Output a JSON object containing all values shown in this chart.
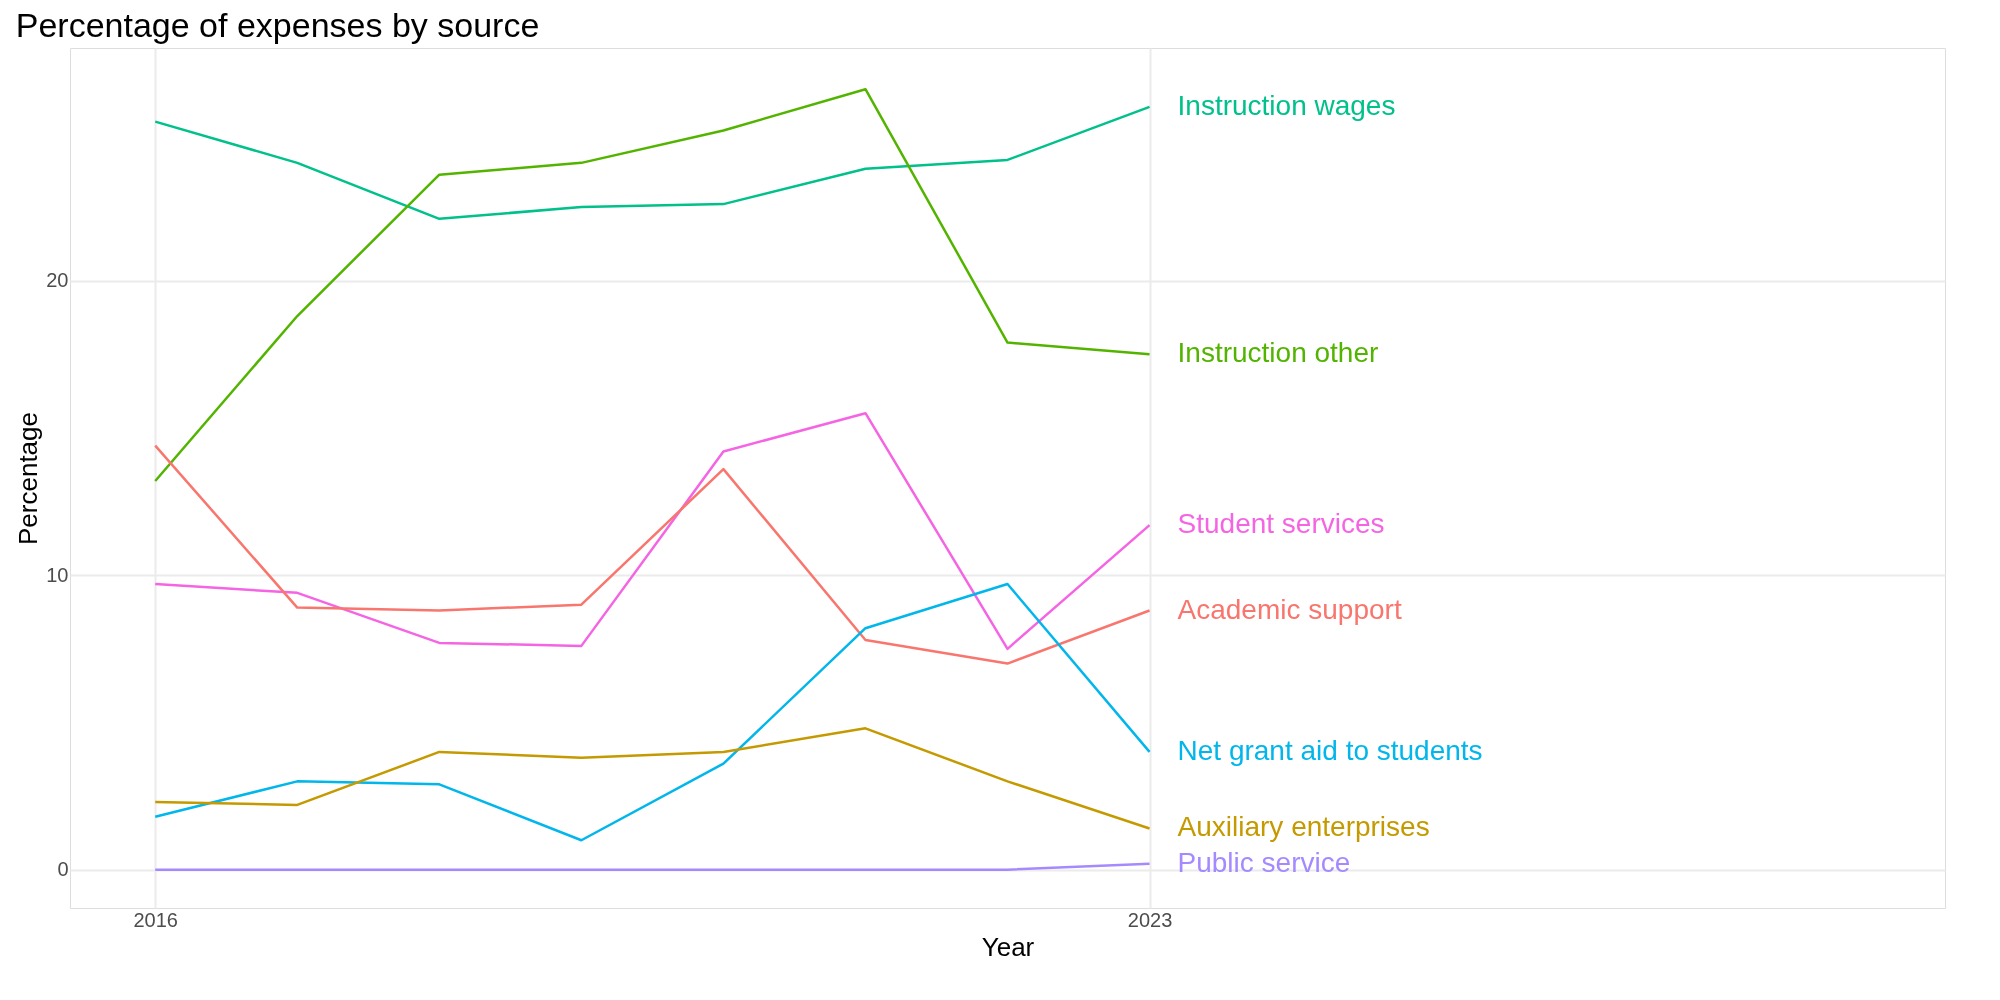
{
  "chart_data": {
    "type": "line",
    "title": "Percentage of expenses by source",
    "xlabel": "Year",
    "ylabel": "Percentage",
    "x": [
      2016,
      2017,
      2018,
      2019,
      2020,
      2021,
      2022,
      2023
    ],
    "xlim": [
      2015.4,
      2028.6
    ],
    "xticks": [
      2016,
      2023
    ],
    "ylim": [
      -1.3,
      27.9
    ],
    "yticks": [
      0,
      10,
      20
    ],
    "grid": true,
    "legend": false,
    "marker": "none",
    "line_style": "solid",
    "series": [
      {
        "name": "Instruction wages",
        "color": "#00c08b",
        "values": [
          25.4,
          24.0,
          22.1,
          22.5,
          22.6,
          23.8,
          24.1,
          25.9
        ]
      },
      {
        "name": "Instruction other",
        "color": "#53b400",
        "values": [
          13.2,
          18.8,
          23.6,
          24.0,
          25.1,
          26.5,
          17.9,
          17.5
        ]
      },
      {
        "name": "Student services",
        "color": "#f564e3",
        "values": [
          9.7,
          9.4,
          7.7,
          7.6,
          14.2,
          15.5,
          7.5,
          11.7
        ]
      },
      {
        "name": "Academic support",
        "color": "#f8766d",
        "values": [
          14.4,
          8.9,
          8.8,
          9.0,
          13.6,
          7.8,
          7.0,
          8.8
        ]
      },
      {
        "name": "Net grant aid to students",
        "color": "#00b6eb",
        "values": [
          1.8,
          3.0,
          2.9,
          1.0,
          3.6,
          8.2,
          9.7,
          4.0
        ]
      },
      {
        "name": "Auxiliary enterprises",
        "color": "#c49a00",
        "values": [
          2.3,
          2.2,
          4.0,
          3.8,
          4.0,
          4.8,
          3.0,
          1.4
        ]
      },
      {
        "name": "Public service",
        "color": "#a58aff",
        "values": [
          0,
          0,
          0,
          0,
          0,
          0,
          0,
          0.2
        ]
      }
    ]
  }
}
